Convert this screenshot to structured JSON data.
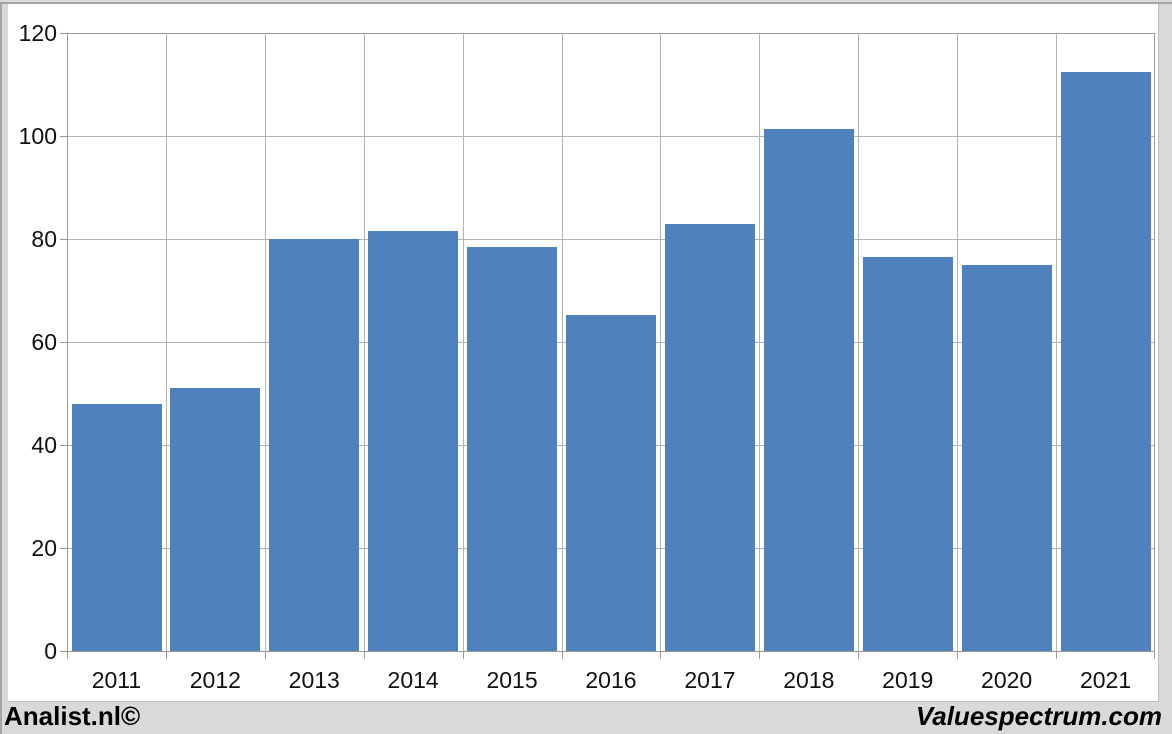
{
  "page": {
    "background": "#d9d9d9",
    "canvas_background": "#ffffff",
    "frame_color": "#a6a6a6"
  },
  "footer": {
    "left_text": "Analist.nl©",
    "right_text": "Valuespectrum.com"
  },
  "chart_data": {
    "type": "bar",
    "title": "",
    "xlabel": "",
    "ylabel": "",
    "categories": [
      "2011",
      "2012",
      "2013",
      "2014",
      "2015",
      "2016",
      "2017",
      "2018",
      "2019",
      "2020",
      "2021"
    ],
    "values": [
      48,
      51,
      80,
      81.5,
      78.5,
      65.3,
      83,
      101.3,
      76.5,
      75,
      112.5
    ],
    "ylim": [
      0,
      120
    ],
    "ytick_step": 20,
    "ytick_labels": [
      "0",
      "20",
      "40",
      "60",
      "80",
      "100",
      "120"
    ],
    "grid": true,
    "legend": "none",
    "colors": {
      "bar_fill": "#4f81bd",
      "gridline": "#b3b3b3",
      "plot_border": "#999999",
      "tick_label": "#111111"
    }
  }
}
